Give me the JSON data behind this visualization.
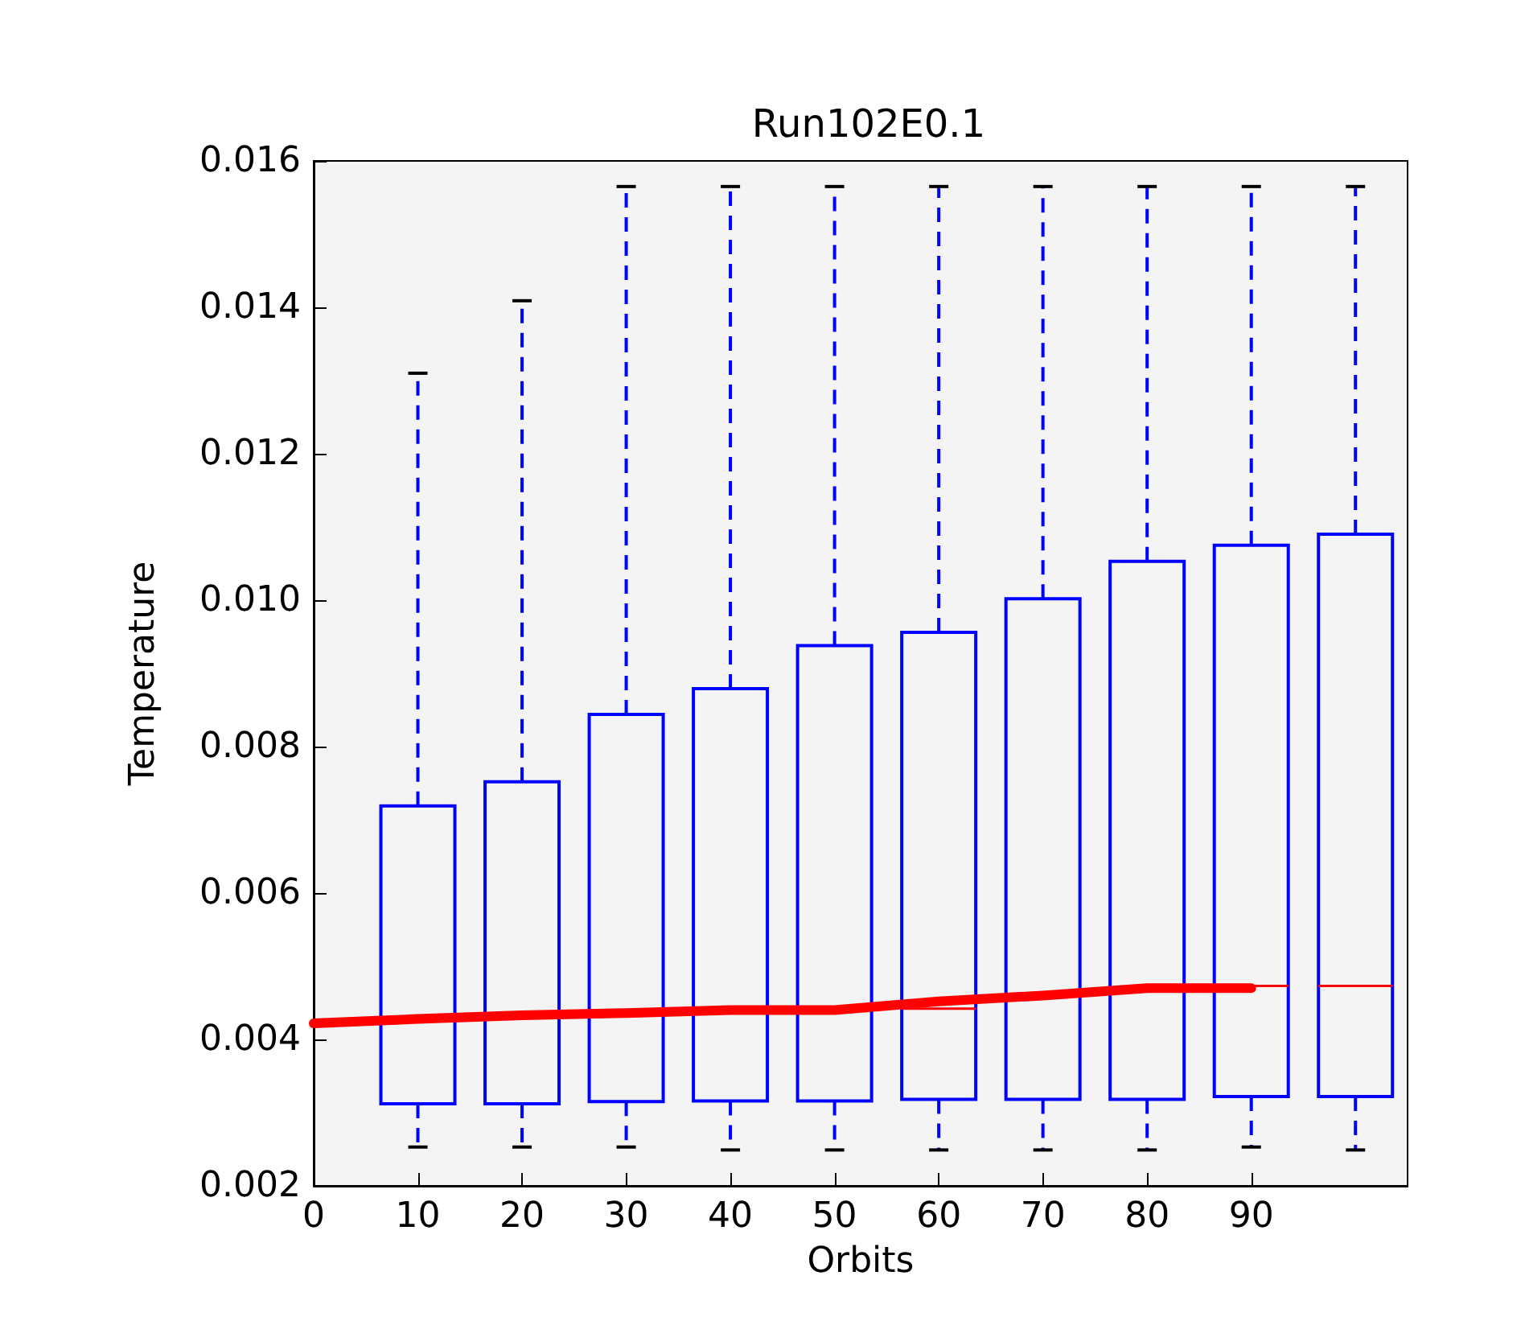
{
  "chart_data": {
    "type": "box",
    "title": "Run102E0.1",
    "xlabel": "Orbits",
    "ylabel": "Temperature",
    "xlim": [
      0,
      105
    ],
    "xticks": [
      0,
      10,
      20,
      30,
      40,
      50,
      60,
      70,
      80,
      90
    ],
    "ylim": [
      0.002,
      0.016
    ],
    "yticks": [
      0.002,
      0.004,
      0.006,
      0.008,
      {
        "value": 0.01,
        "label": "0.010"
      },
      0.012,
      0.014,
      0.016
    ],
    "grid": false,
    "series": [
      {
        "color": "#0000ff",
        "x": [
          10,
          20,
          30,
          40,
          50,
          60,
          70,
          80,
          90,
          100
        ],
        "boxes": [
          {
            "low": 0.00253,
            "q1": 0.00312,
            "median": 0.00428,
            "q3": 0.00719,
            "high": 0.0131
          },
          {
            "low": 0.00253,
            "q1": 0.00312,
            "median": 0.00433,
            "q3": 0.00752,
            "high": 0.01409
          },
          {
            "low": 0.00253,
            "q1": 0.00315,
            "median": 0.00436,
            "q3": 0.00844,
            "high": 0.01565
          },
          {
            "low": 0.00249,
            "q1": 0.00316,
            "median": 0.0044,
            "q3": 0.00879,
            "high": 0.01565
          },
          {
            "low": 0.00249,
            "q1": 0.00316,
            "median": 0.0044,
            "q3": 0.00938,
            "high": 0.01565
          },
          {
            "low": 0.00249,
            "q1": 0.00318,
            "median": 0.00442,
            "q3": 0.00956,
            "high": 0.01565
          },
          {
            "low": 0.00249,
            "q1": 0.00318,
            "median": 0.0046,
            "q3": 0.01002,
            "high": 0.01565
          },
          {
            "low": 0.00249,
            "q1": 0.00318,
            "median": 0.0047,
            "q3": 0.01053,
            "high": 0.01565
          },
          {
            "low": 0.00253,
            "q1": 0.00322,
            "median": 0.00473,
            "q3": 0.01075,
            "high": 0.01565
          },
          {
            "low": 0.00249,
            "q1": 0.00322,
            "median": 0.00473,
            "q3": 0.0109,
            "high": 0.01565
          }
        ]
      },
      {
        "type": "line",
        "color": "#ff0000",
        "marker": "none",
        "x": [
          0,
          10,
          20,
          30,
          40,
          50,
          60,
          70,
          80,
          90
        ],
        "values": [
          0.00422,
          0.00428,
          0.00433,
          0.00436,
          0.0044,
          0.0044,
          0.00452,
          0.0046,
          0.0047,
          0.0047
        ]
      }
    ]
  }
}
